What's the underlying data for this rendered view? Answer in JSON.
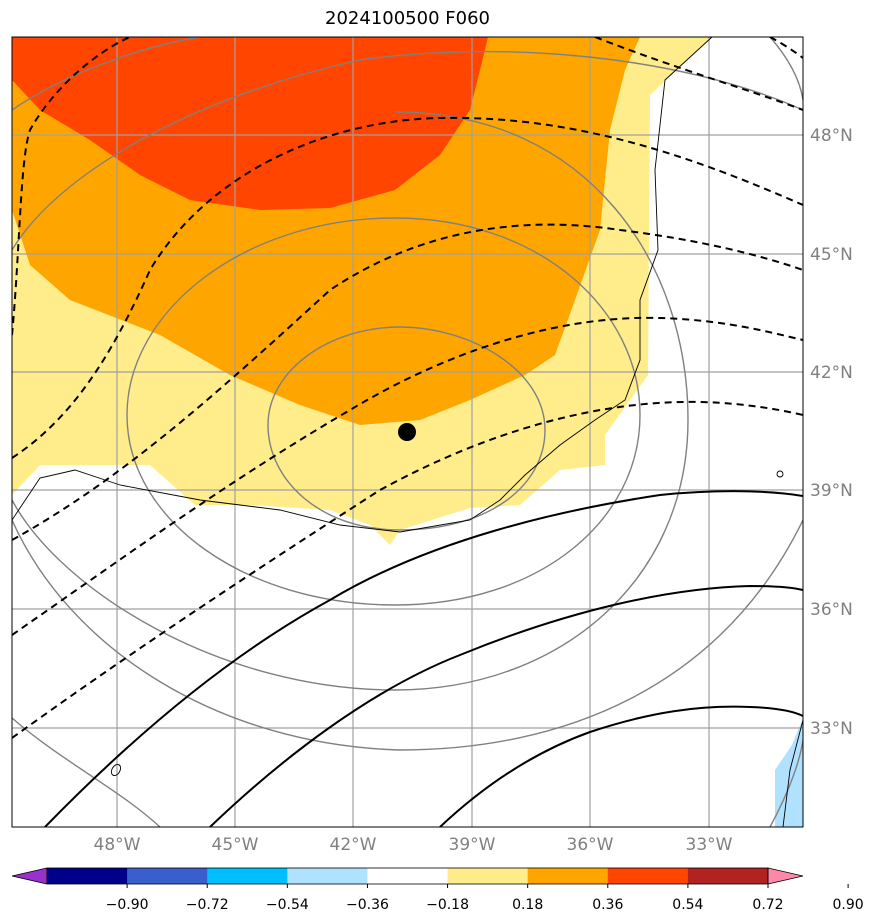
{
  "title": "2024100500 F060",
  "map": {
    "lat_labels": [
      "48°N",
      "45°N",
      "42°N",
      "39°N",
      "36°N",
      "33°N"
    ],
    "lon_labels": [
      "48°W",
      "45°W",
      "42°W",
      "39°W",
      "36°W",
      "33°W"
    ],
    "center_marker": "storm-center-dot"
  },
  "colorbar": {
    "labels": [
      "−0.90",
      "−0.72",
      "−0.54",
      "−0.36",
      "−0.18",
      "0.18",
      "0.36",
      "0.54",
      "0.72",
      "0.90"
    ],
    "colors": [
      "#9932cc",
      "#00008b",
      "#3a5fcd",
      "#00bfff",
      "#b0e2ff",
      "#ffffff",
      "#ffec8b",
      "#ffa500",
      "#ff4500",
      "#b22222",
      "#ff88aa"
    ]
  },
  "shading_colors": {
    "light_yellow": "#ffec8b",
    "orange": "#ffa500",
    "red_orange": "#ff4500",
    "light_blue": "#b0e2ff"
  }
}
